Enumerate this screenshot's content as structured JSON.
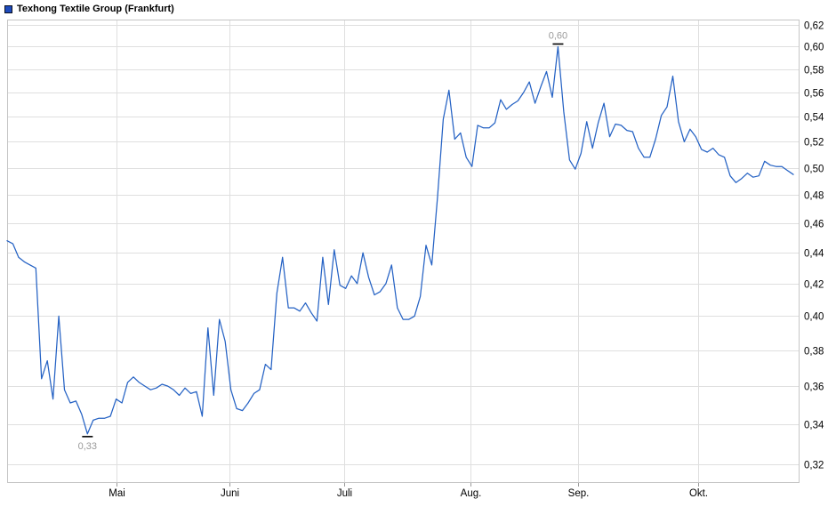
{
  "header": {
    "title": "Texhong Textile Group (Frankfurt)"
  },
  "colors": {
    "background": "#ffffff",
    "line": "#2562c4",
    "legend_fill": "#1e4bbc",
    "legend_border": "#0a0f1e",
    "grid": "#dfdfdf",
    "plot_border": "#c5c5c5",
    "axis_text": "#000000",
    "tick_mark": "#9a9a9a",
    "annotation_text": "#9a9a9a",
    "annotation_marker": "#000000"
  },
  "chart_data": {
    "type": "line",
    "title": "Texhong Textile Group (Frankfurt)",
    "xlabel": "",
    "ylabel": "",
    "x_unit": "trading days (mid-April through end of October)",
    "ylim": [
      0.32,
      0.62
    ],
    "y_scale": "log",
    "grid": true,
    "legend_position": "top-left",
    "x_ticks": [
      {
        "label": "Mai",
        "day_index": 19.0
      },
      {
        "label": "Juni",
        "day_index": 38.7
      },
      {
        "label": "Juli",
        "day_index": 58.7
      },
      {
        "label": "Aug.",
        "day_index": 80.7
      },
      {
        "label": "Sep.",
        "day_index": 99.5
      },
      {
        "label": "Okt.",
        "day_index": 120.4
      }
    ],
    "y_ticks": [
      {
        "label": "0,62",
        "value": 0.62
      },
      {
        "label": "0,60",
        "value": 0.6
      },
      {
        "label": "0,58",
        "value": 0.58
      },
      {
        "label": "0,56",
        "value": 0.56
      },
      {
        "label": "0,54",
        "value": 0.54
      },
      {
        "label": "0,52",
        "value": 0.52
      },
      {
        "label": "0,50",
        "value": 0.5
      },
      {
        "label": "0,48",
        "value": 0.48
      },
      {
        "label": "0,46",
        "value": 0.46
      },
      {
        "label": "0,44",
        "value": 0.44
      },
      {
        "label": "0,42",
        "value": 0.42
      },
      {
        "label": "0,40",
        "value": 0.4
      },
      {
        "label": "0,38",
        "value": 0.38
      },
      {
        "label": "0,36",
        "value": 0.36
      },
      {
        "label": "0,34",
        "value": 0.34
      },
      {
        "label": "0,32",
        "value": 0.32
      }
    ],
    "series": [
      {
        "name": "Texhong Textile Group",
        "values": [
          0.448,
          0.446,
          0.437,
          0.434,
          0.432,
          0.43,
          0.364,
          0.374,
          0.353,
          0.4,
          0.358,
          0.351,
          0.352,
          0.345,
          0.335,
          0.342,
          0.343,
          0.343,
          0.344,
          0.353,
          0.351,
          0.362,
          0.365,
          0.362,
          0.36,
          0.358,
          0.359,
          0.361,
          0.36,
          0.358,
          0.355,
          0.359,
          0.356,
          0.357,
          0.344,
          0.393,
          0.355,
          0.398,
          0.385,
          0.358,
          0.348,
          0.347,
          0.351,
          0.356,
          0.358,
          0.372,
          0.369,
          0.414,
          0.437,
          0.405,
          0.405,
          0.403,
          0.408,
          0.402,
          0.397,
          0.437,
          0.407,
          0.442,
          0.419,
          0.417,
          0.425,
          0.42,
          0.44,
          0.424,
          0.413,
          0.415,
          0.42,
          0.432,
          0.405,
          0.398,
          0.398,
          0.4,
          0.412,
          0.445,
          0.432,
          0.478,
          0.538,
          0.562,
          0.522,
          0.527,
          0.508,
          0.501,
          0.533,
          0.531,
          0.531,
          0.535,
          0.554,
          0.546,
          0.55,
          0.553,
          0.56,
          0.569,
          0.551,
          0.565,
          0.578,
          0.556,
          0.6,
          0.544,
          0.506,
          0.499,
          0.511,
          0.536,
          0.515,
          0.535,
          0.551,
          0.524,
          0.534,
          0.533,
          0.529,
          0.528,
          0.515,
          0.508,
          0.508,
          0.522,
          0.541,
          0.548,
          0.574,
          0.536,
          0.52,
          0.53,
          0.524,
          0.514,
          0.512,
          0.515,
          0.51,
          0.508,
          0.494,
          0.489,
          0.492,
          0.496,
          0.493,
          0.494,
          0.505,
          0.502,
          0.501,
          0.501,
          0.498,
          0.495
        ]
      }
    ],
    "annotations": {
      "high": {
        "label": "0,60",
        "day_index": 96,
        "value": 0.6
      },
      "low": {
        "label": "0,33",
        "day_index": 14,
        "value": 0.335
      }
    }
  }
}
